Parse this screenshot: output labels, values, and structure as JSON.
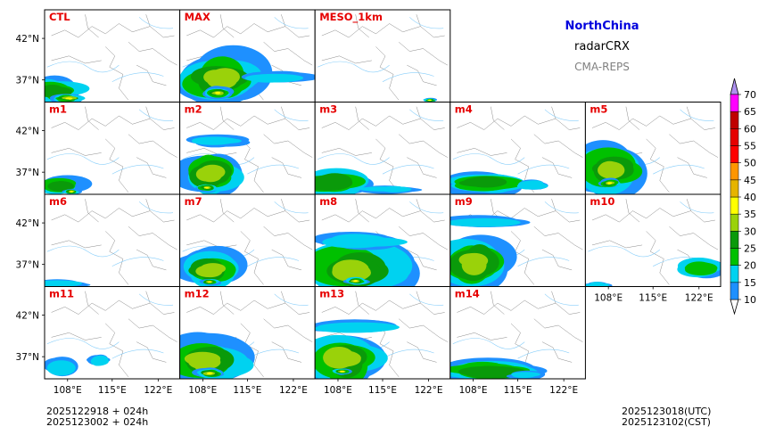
{
  "chart_data": {
    "type": "heatmap",
    "description_variable": "radarCRX",
    "region": "NorthChina",
    "variable": "radarCRX",
    "model": "CMA-REPS",
    "members": [
      "CTL",
      "MAX",
      "MESO_1km",
      "m1",
      "m2",
      "m3",
      "m4",
      "m5",
      "m6",
      "m7",
      "m8",
      "m9",
      "m10",
      "m11",
      "m12",
      "m13",
      "m14"
    ],
    "xticks": [
      "108°E",
      "115°E",
      "122°E"
    ],
    "yticks": [
      "42°N",
      "37°N"
    ],
    "colorbar": {
      "levels": [
        "10",
        "15",
        "20",
        "25",
        "30",
        "35",
        "40",
        "45",
        "50",
        "55",
        "60",
        "65",
        "70"
      ],
      "colors": [
        "#1e90ff",
        "#00d2f0",
        "#00c000",
        "#0a9a0a",
        "#9ad20a",
        "#ffff00",
        "#e6b400",
        "#ff9600",
        "#ff0000",
        "#e60000",
        "#c00000",
        "#ff00ff",
        "#9600b4",
        "#ad90f0"
      ]
    },
    "init_time_utc": "2025122918  +  024h",
    "init_time_cst": "2025123002  +  024h",
    "valid_time_utc": "2025123018(UTC)",
    "valid_time_cst": "2025123102(CST)"
  }
}
